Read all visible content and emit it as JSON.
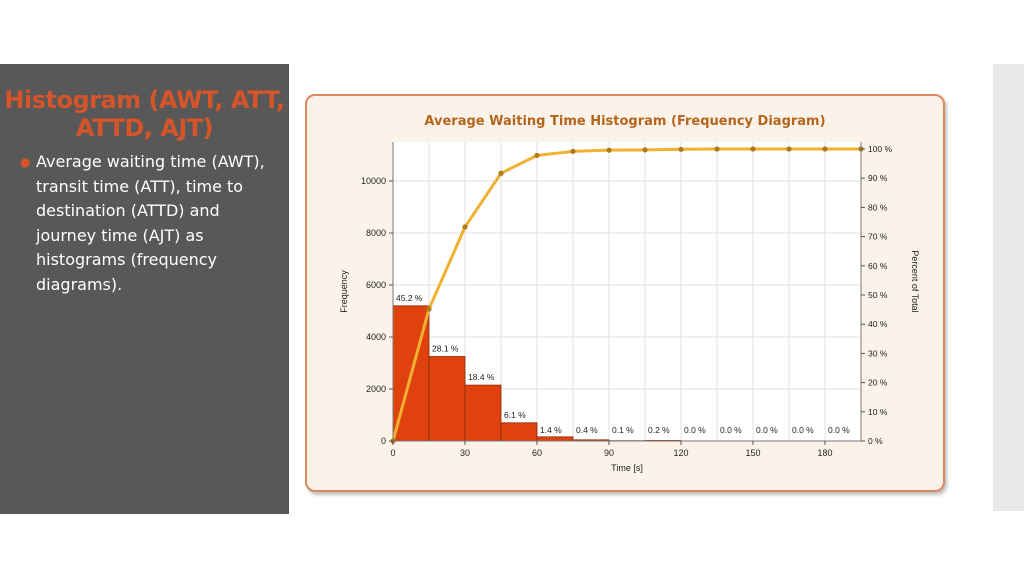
{
  "slide": {
    "title": "Histogram (AWT, ATT, ATTD, AJT)",
    "bullet": "Average waiting time (AWT), transit time (ATT), time to destination (ATTD) and journey time (AJT) as histograms (frequency diagrams)."
  },
  "colors": {
    "title_accent": "#d6542a",
    "panel_bg": "#585858",
    "bar_fill": "#e0420e",
    "line_color": "#f0b030",
    "chart_title": "#b5651d"
  },
  "chart_data": {
    "type": "bar",
    "title": "Average Waiting Time Histogram (Frequency Diagram)",
    "xlabel": "Time [s]",
    "ylabel": "Frequency",
    "y2label": "Percent of Total",
    "xlim": [
      0,
      195
    ],
    "ylim": [
      0,
      11500
    ],
    "y2lim": [
      0,
      100
    ],
    "xticks": [
      0,
      30,
      60,
      90,
      120,
      150,
      180
    ],
    "yticks": [
      0,
      2000,
      4000,
      6000,
      8000,
      10000
    ],
    "y2ticks": [
      "0 %",
      "10 %",
      "20 %",
      "30 %",
      "40 %",
      "50 %",
      "60 %",
      "70 %",
      "80 %",
      "90 %",
      "100 %"
    ],
    "grid": true,
    "bin_width": 15,
    "bins": [
      {
        "start": 0,
        "value": 5200,
        "label": "45.2 %"
      },
      {
        "start": 15,
        "value": 3250,
        "label": "28.1 %"
      },
      {
        "start": 30,
        "value": 2150,
        "label": "18.4 %"
      },
      {
        "start": 45,
        "value": 700,
        "label": "6.1 %"
      },
      {
        "start": 60,
        "value": 160,
        "label": "1.4 %"
      },
      {
        "start": 75,
        "value": 45,
        "label": "0.4 %"
      },
      {
        "start": 90,
        "value": 12,
        "label": "0.1 %"
      },
      {
        "start": 105,
        "value": 20,
        "label": "0.2 %"
      },
      {
        "start": 120,
        "value": 0,
        "label": "0.0 %"
      },
      {
        "start": 135,
        "value": 0,
        "label": "0.0 %"
      },
      {
        "start": 150,
        "value": 0,
        "label": "0.0 %"
      },
      {
        "start": 165,
        "value": 0,
        "label": "0.0 %"
      },
      {
        "start": 180,
        "value": 0,
        "label": "0.0 %"
      }
    ],
    "cumulative": {
      "x": [
        0,
        15,
        30,
        45,
        60,
        75,
        90,
        105,
        120,
        135,
        150,
        165,
        180,
        195
      ],
      "values": [
        0,
        45.2,
        73.3,
        91.7,
        97.8,
        99.2,
        99.6,
        99.7,
        99.9,
        100,
        100,
        100,
        100,
        100
      ]
    }
  }
}
